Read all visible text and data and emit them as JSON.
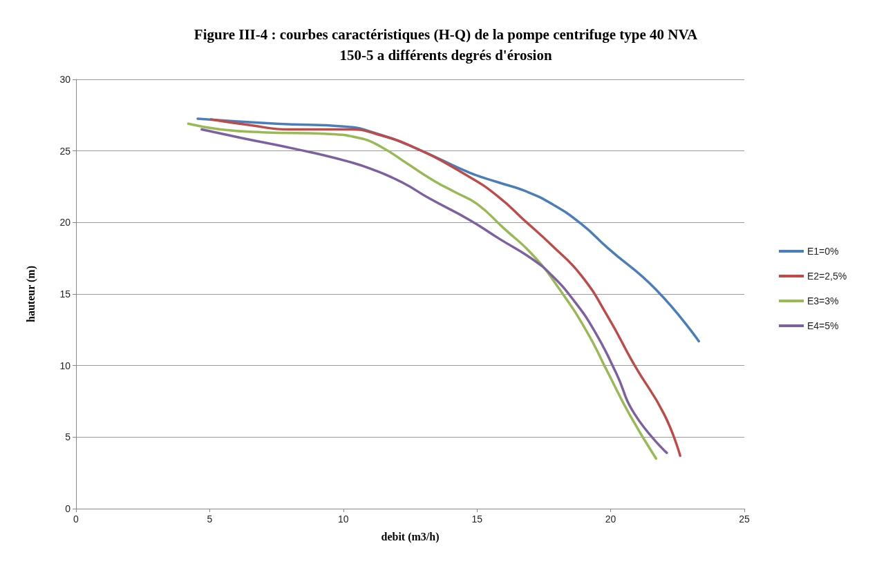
{
  "chart_data": {
    "type": "line",
    "title": "Figure III-4 : courbes caractéristiques (H-Q) de la pompe centrifuge type 40 NVA\n150-5 a différents degrés d'érosion",
    "xlabel": "debit (m3/h)",
    "ylabel": "hauteur (m)",
    "xlim": [
      0,
      25
    ],
    "xticks": [
      0,
      5,
      10,
      15,
      20,
      25
    ],
    "ylim": [
      0,
      30
    ],
    "yticks": [
      0,
      5,
      10,
      15,
      20,
      25,
      30
    ],
    "grid": "y",
    "legend": "right",
    "marker": "none",
    "line_style": "solid",
    "series": [
      {
        "name": "E1=0%",
        "color": "#4a7ebb",
        "x": [
          4.55,
          7.5,
          10.1,
          11.1,
          12.7,
          14.7,
          15.8,
          16.8,
          17.8,
          18.9,
          19.9,
          21.7,
          23.3
        ],
        "values": [
          27.25,
          26.9,
          26.7,
          26.3,
          25.2,
          23.5,
          22.8,
          22.2,
          21.3,
          19.9,
          18.2,
          15.3,
          11.7
        ]
      },
      {
        "name": "E2=2,5%",
        "color": "#be4b48",
        "x": [
          5.05,
          6.5,
          8.0,
          10.3,
          11.2,
          12.7,
          14.7,
          15.8,
          16.8,
          17.8,
          18.9,
          19.9,
          20.9,
          22.0,
          22.6
        ],
        "values": [
          27.2,
          26.8,
          26.5,
          26.5,
          26.2,
          25.2,
          23.2,
          21.8,
          20.1,
          18.4,
          16.3,
          13.4,
          10.0,
          6.6,
          3.7
        ]
      },
      {
        "name": "E3=3%",
        "color": "#98b954",
        "x": [
          4.2,
          5.4,
          7.0,
          9.3,
          10.6,
          11.4,
          12.4,
          13.4,
          14.2,
          15.0,
          16.0,
          17.1,
          18.1,
          19.1,
          19.9,
          20.7,
          21.7
        ],
        "values": [
          26.9,
          26.5,
          26.3,
          26.2,
          25.9,
          25.3,
          24.1,
          22.9,
          22.1,
          21.3,
          19.6,
          17.7,
          15.3,
          12.4,
          9.5,
          6.6,
          3.5
        ]
      },
      {
        "name": "E4=5%",
        "color": "#7d60a0",
        "x": [
          4.7,
          6.2,
          8.3,
          10.1,
          11.1,
          12.2,
          13.2,
          14.7,
          15.8,
          17.1,
          17.8,
          18.6,
          19.4,
          20.2,
          20.9,
          22.1
        ],
        "values": [
          26.5,
          25.9,
          25.1,
          24.3,
          23.7,
          22.8,
          21.7,
          20.2,
          18.9,
          17.4,
          16.3,
          14.6,
          12.4,
          9.5,
          6.6,
          3.9
        ]
      }
    ]
  }
}
